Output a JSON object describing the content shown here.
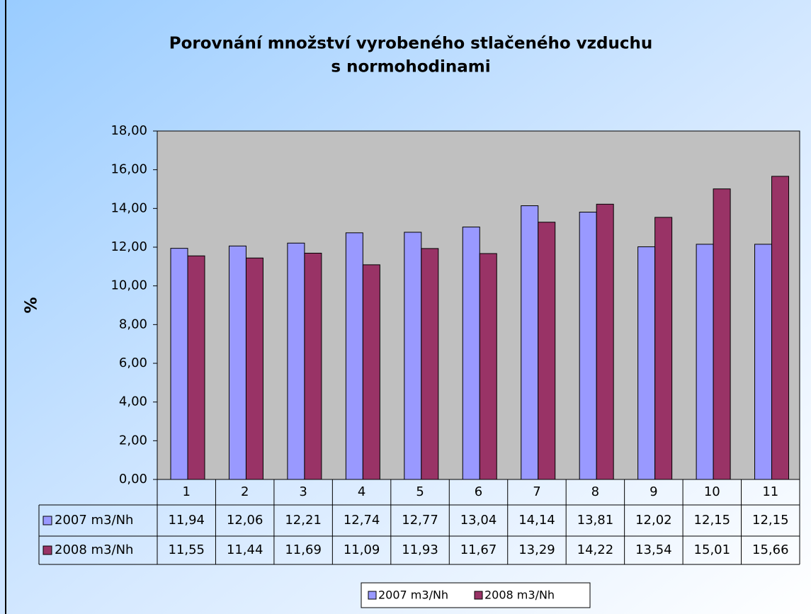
{
  "chart_data": {
    "type": "bar",
    "title": [
      "Porovnání množství vyrobeného stlačeného vzduchu",
      "s normohodinami"
    ],
    "y_label": "%",
    "categories": [
      "1",
      "2",
      "3",
      "4",
      "5",
      "6",
      "7",
      "8",
      "9",
      "10",
      "11"
    ],
    "series": [
      {
        "name": "2007 m3/Nh",
        "color": "#9999ff",
        "values": [
          11.94,
          12.06,
          12.21,
          12.74,
          12.77,
          13.04,
          14.14,
          13.81,
          12.02,
          12.15,
          12.15
        ],
        "value_labels": [
          "11,94",
          "12,06",
          "12,21",
          "12,74",
          "12,77",
          "13,04",
          "14,14",
          "13,81",
          "12,02",
          "12,15",
          "12,15"
        ]
      },
      {
        "name": "2008 m3/Nh",
        "color": "#993366",
        "values": [
          11.55,
          11.44,
          11.69,
          11.09,
          11.93,
          11.67,
          13.29,
          14.22,
          13.54,
          15.01,
          15.66
        ],
        "value_labels": [
          "11,55",
          "11,44",
          "11,69",
          "11,09",
          "11,93",
          "11,67",
          "13,29",
          "14,22",
          "13,54",
          "15,01",
          "15,66"
        ]
      }
    ],
    "ylim": [
      0,
      18
    ],
    "yticks": [
      {
        "value": 0,
        "label": "0,00"
      },
      {
        "value": 2,
        "label": "2,00"
      },
      {
        "value": 4,
        "label": "4,00"
      },
      {
        "value": 6,
        "label": "6,00"
      },
      {
        "value": 8,
        "label": "8,00"
      },
      {
        "value": 10,
        "label": "10,00"
      },
      {
        "value": 12,
        "label": "12,00"
      },
      {
        "value": 14,
        "label": "14,00"
      },
      {
        "value": 16,
        "label": "16,00"
      },
      {
        "value": 18,
        "label": "18,00"
      }
    ],
    "plot_background": "#c0c0c0"
  }
}
